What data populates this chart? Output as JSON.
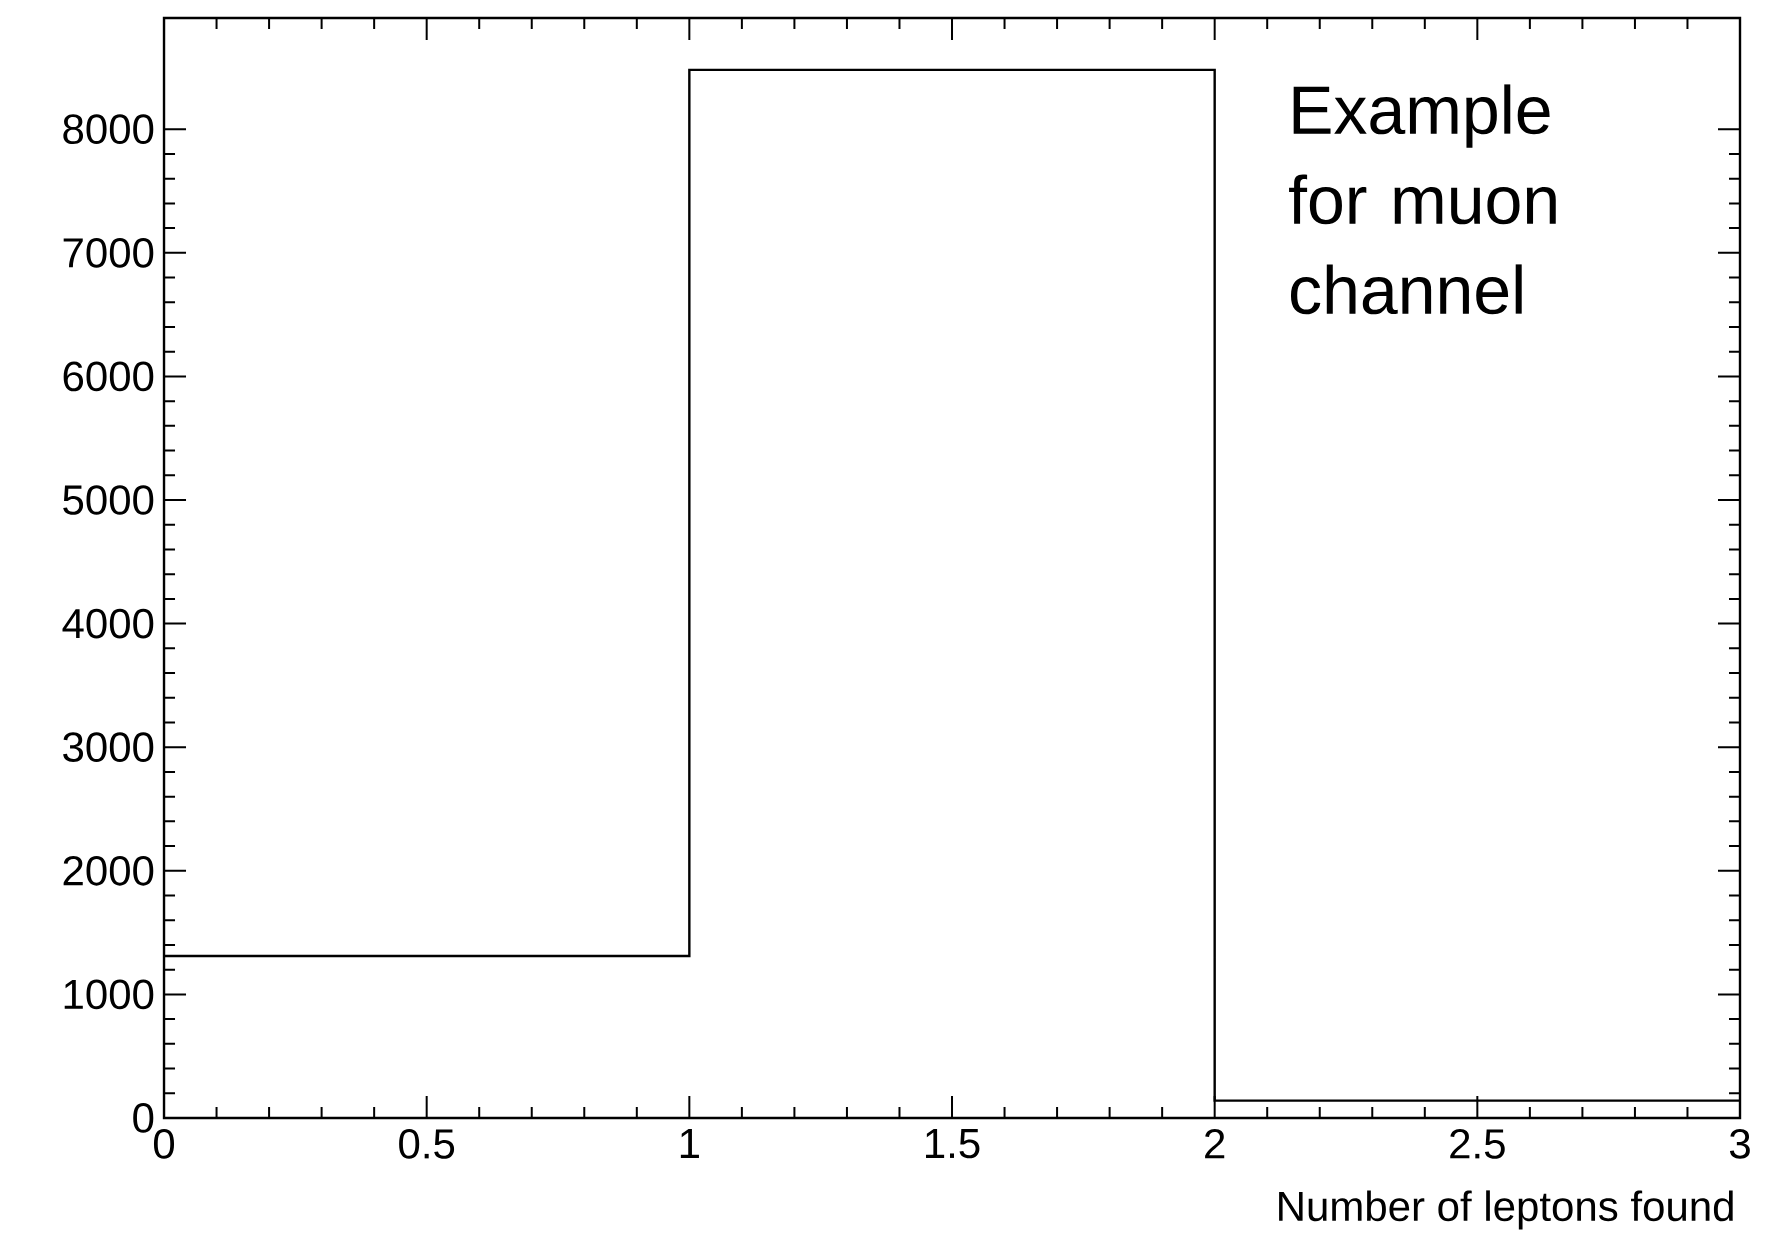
{
  "chart_data": {
    "type": "histogram",
    "bins": [
      0,
      1,
      2,
      3
    ],
    "values": [
      1310,
      8480,
      140
    ],
    "color": "#000000",
    "xlim": [
      0,
      3
    ],
    "ylim": [
      0,
      8900
    ],
    "xticks": [
      0,
      0.5,
      1,
      1.5,
      2,
      2.5,
      3
    ],
    "yticks": [
      0,
      1000,
      2000,
      3000,
      4000,
      5000,
      6000,
      7000,
      8000
    ],
    "xlabel": "Number of leptons found",
    "annotations": [
      "Example for muon channel"
    ]
  }
}
